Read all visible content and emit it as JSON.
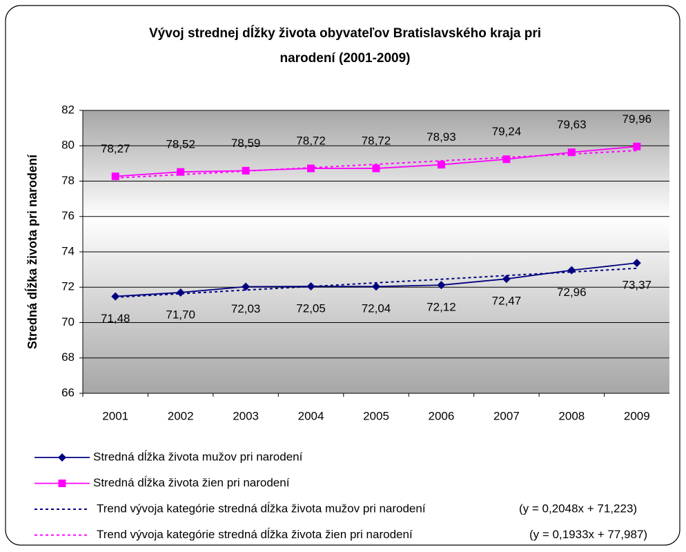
{
  "chart_data": {
    "type": "line",
    "title": [
      "Vývoj strednej dĺžky života obyvateľov Bratislavského kraja pri",
      "narodení (2001-2009)"
    ],
    "y_label": "Stredná dĺžka života pri narodení",
    "categories": [
      "2001",
      "2002",
      "2003",
      "2004",
      "2005",
      "2006",
      "2007",
      "2008",
      "2009"
    ],
    "ylim": [
      66,
      82
    ],
    "yticks": [
      66,
      68,
      70,
      72,
      74,
      76,
      78,
      80,
      82
    ],
    "grid": true,
    "series": [
      {
        "name": "Stredná dĺžka života mužov pri narodení",
        "color": "#000080",
        "marker": "diamond",
        "line_style": "solid",
        "label_side": "below",
        "values": [
          71.48,
          71.7,
          72.03,
          72.05,
          72.04,
          72.12,
          72.47,
          72.96,
          73.37
        ],
        "value_labels": [
          "71,48",
          "71,70",
          "72,03",
          "72,05",
          "72,04",
          "72,12",
          "72,47",
          "72,96",
          "73,37"
        ]
      },
      {
        "name": "Stredná dĺžka života žien pri narodení",
        "color": "#ff00ff",
        "marker": "square",
        "line_style": "solid",
        "label_side": "above",
        "values": [
          78.27,
          78.52,
          78.59,
          78.72,
          78.72,
          78.93,
          79.24,
          79.63,
          79.96
        ],
        "value_labels": [
          "78,27",
          "78,52",
          "78,59",
          "78,72",
          "78,72",
          "78,93",
          "79,24",
          "79,63",
          "79,96"
        ]
      },
      {
        "name": "Trend vývoja kategórie stredná dĺžka života mužov pri narodení",
        "equation": "(y = 0,2048x + 71,223)",
        "color": "#000080",
        "line_style": "dotted",
        "values": [
          71.43,
          71.63,
          71.84,
          72.04,
          72.25,
          72.45,
          72.66,
          72.86,
          73.07
        ]
      },
      {
        "name": "Trend vývoja kategórie stredná dĺžka života žien pri narodení",
        "equation": "(y = 0,1933x + 77,987)",
        "color": "#ff00ff",
        "line_style": "dotted",
        "values": [
          78.18,
          78.37,
          78.57,
          78.76,
          78.95,
          79.15,
          79.34,
          79.53,
          79.73
        ]
      }
    ]
  }
}
